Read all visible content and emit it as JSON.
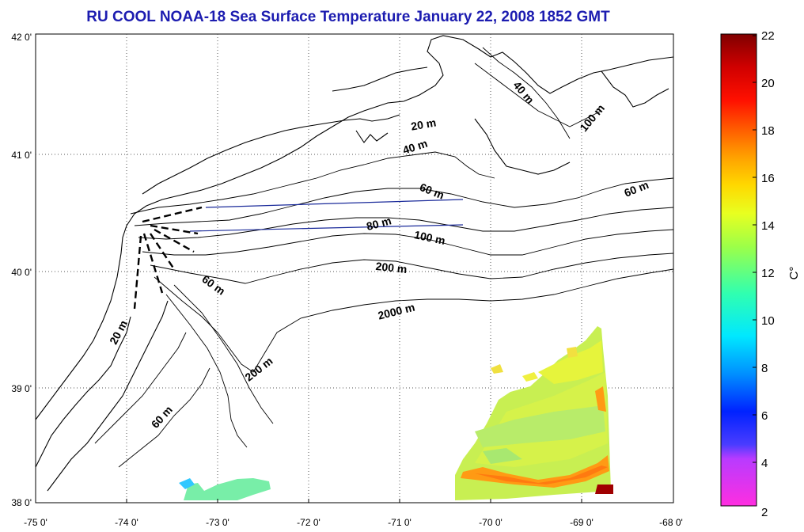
{
  "title": "RU COOL  NOAA-18 Sea Surface Temperature January 22, 2008 1852 GMT",
  "x_ticks": [
    "-75 0'",
    "-74 0'",
    "-73 0'",
    "-72 0'",
    "-71 0'",
    "-70 0'",
    "-69 0'",
    "-68 0'"
  ],
  "y_ticks": [
    "42 0'",
    "41 0'",
    "40 0'",
    "39 0'",
    "38 0'"
  ],
  "colorbar": {
    "unit_label": "C°",
    "ticks": [
      "22",
      "20",
      "18",
      "16",
      "14",
      "12",
      "10",
      "8",
      "6",
      "4",
      "2"
    ]
  },
  "isobaths": {
    "20m_north": "20 m",
    "40m_north": "40 m",
    "40m_east": "40 m",
    "100m_east": "100 m",
    "60m_east": "60 m",
    "60m_center": "60 m",
    "80m": "80 m",
    "100m": "100 m",
    "200m_center": "200 m",
    "2000m": "2000 m",
    "60m_nj": "60 m",
    "20m_nj": "20 m",
    "200m_sw": "200 m",
    "60m_sw": "60 m"
  }
}
